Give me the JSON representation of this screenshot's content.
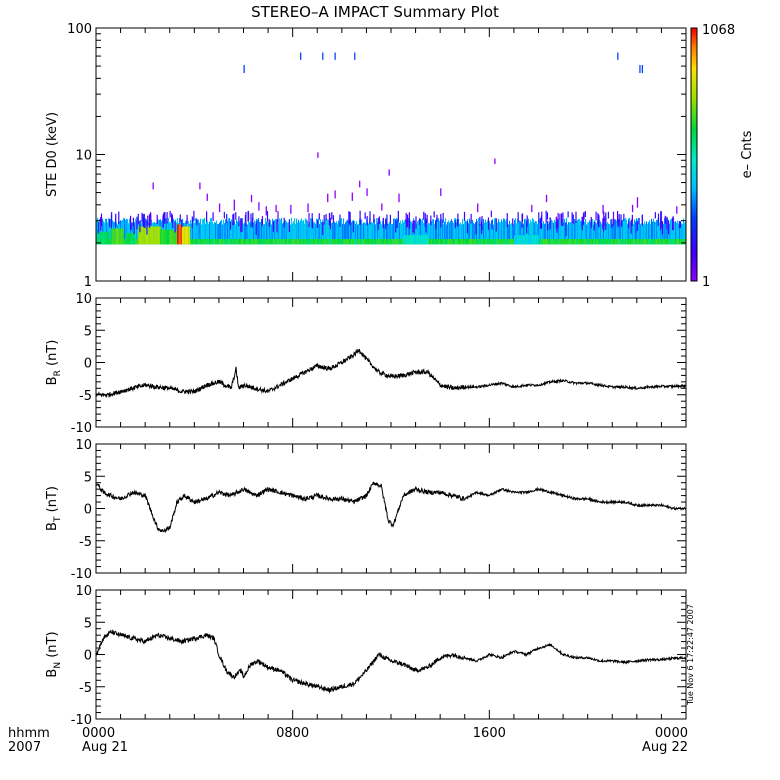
{
  "chart_data": {
    "title": "STEREO–A IMPACT Summary Plot",
    "x_axis": {
      "row_label_1": "hhmm",
      "row_label_2": "2007",
      "ticks": [
        {
          "hour": 0,
          "time": "0000",
          "date": "Aug 21"
        },
        {
          "hour": 8,
          "time": "0800",
          "date": ""
        },
        {
          "hour": 16,
          "time": "1600",
          "date": ""
        },
        {
          "hour": 24,
          "time": "0000",
          "date": "Aug 22"
        }
      ],
      "range_hours": [
        0,
        24
      ]
    },
    "timestamp": "Tue Nov  6 17:22:47 2007",
    "panels": [
      {
        "id": "ste",
        "type": "heatmap",
        "ylabel": "STE D0 (keV)",
        "yscale": "log",
        "ylim": [
          1,
          100
        ],
        "yticks": [
          {
            "value": 1,
            "label": "1"
          },
          {
            "value": 10,
            "label": "10"
          },
          {
            "value": 100,
            "label": "100"
          }
        ],
        "colorbar": {
          "label": "e– Cnts",
          "min_label": "1",
          "max_label": "1068",
          "min": 1,
          "max": 1068
        },
        "background_band": {
          "ylow": 1.95,
          "yhigh": 3.1
        },
        "hot_spots": [
          {
            "x0": 0.05,
            "x1": 0.5,
            "ylow": 1.95,
            "yhigh": 2.45,
            "counts": 70
          },
          {
            "x0": 0.6,
            "x1": 1.1,
            "ylow": 1.95,
            "yhigh": 2.6,
            "counts": 120
          },
          {
            "x0": 1.2,
            "x1": 1.6,
            "ylow": 1.95,
            "yhigh": 2.4,
            "counts": 60
          },
          {
            "x0": 1.7,
            "x1": 2.6,
            "ylow": 1.95,
            "yhigh": 2.7,
            "counts": 200
          },
          {
            "x0": 2.6,
            "x1": 3.1,
            "ylow": 1.95,
            "yhigh": 2.55,
            "counts": 90
          },
          {
            "x0": 3.0,
            "x1": 3.3,
            "ylow": 1.95,
            "yhigh": 2.5,
            "counts": 110
          },
          {
            "x0": 3.3,
            "x1": 3.5,
            "ylow": 1.95,
            "yhigh": 2.8,
            "counts": 1068
          },
          {
            "x0": 3.5,
            "x1": 3.8,
            "ylow": 1.95,
            "yhigh": 2.7,
            "counts": 300
          },
          {
            "x0": 12.5,
            "x1": 13.5,
            "ylow": 1.95,
            "yhigh": 2.3,
            "counts": 30
          },
          {
            "x0": 17.0,
            "x1": 18.0,
            "ylow": 1.95,
            "yhigh": 2.3,
            "counts": 25
          }
        ],
        "spikes": [
          {
            "x": 2.3,
            "ylow": 5.3,
            "yhigh": 6.0,
            "counts": 1
          },
          {
            "x": 4.2,
            "ylow": 5.3,
            "yhigh": 6.0,
            "counts": 1
          },
          {
            "x": 4.5,
            "ylow": 4.3,
            "yhigh": 4.9,
            "counts": 1
          },
          {
            "x": 5.0,
            "ylow": 3.5,
            "yhigh": 4.1,
            "counts": 1
          },
          {
            "x": 5.6,
            "ylow": 3.6,
            "yhigh": 4.4,
            "counts": 1
          },
          {
            "x": 6.3,
            "ylow": 4.2,
            "yhigh": 4.8,
            "counts": 1
          },
          {
            "x": 6.6,
            "ylow": 3.6,
            "yhigh": 4.2,
            "counts": 1
          },
          {
            "x": 6.9,
            "ylow": 3.3,
            "yhigh": 3.9,
            "counts": 1
          },
          {
            "x": 7.3,
            "ylow": 3.5,
            "yhigh": 4.0,
            "counts": 1
          },
          {
            "x": 7.9,
            "ylow": 3.4,
            "yhigh": 4.0,
            "counts": 1
          },
          {
            "x": 8.6,
            "ylow": 3.5,
            "yhigh": 4.1,
            "counts": 1
          },
          {
            "x": 9.0,
            "ylow": 9.4,
            "yhigh": 10.4,
            "counts": 1
          },
          {
            "x": 9.4,
            "ylow": 4.2,
            "yhigh": 4.9,
            "counts": 1
          },
          {
            "x": 9.7,
            "ylow": 4.5,
            "yhigh": 5.2,
            "counts": 1
          },
          {
            "x": 10.4,
            "ylow": 4.3,
            "yhigh": 5.0,
            "counts": 1
          },
          {
            "x": 10.7,
            "ylow": 5.5,
            "yhigh": 6.2,
            "counts": 1
          },
          {
            "x": 11.0,
            "ylow": 4.7,
            "yhigh": 5.4,
            "counts": 1
          },
          {
            "x": 11.6,
            "ylow": 3.6,
            "yhigh": 4.1,
            "counts": 1
          },
          {
            "x": 11.9,
            "ylow": 6.8,
            "yhigh": 7.6,
            "counts": 1
          },
          {
            "x": 12.3,
            "ylow": 4.2,
            "yhigh": 4.9,
            "counts": 1
          },
          {
            "x": 14.0,
            "ylow": 4.7,
            "yhigh": 5.4,
            "counts": 1
          },
          {
            "x": 15.5,
            "ylow": 3.5,
            "yhigh": 4.1,
            "counts": 1
          },
          {
            "x": 16.2,
            "ylow": 8.4,
            "yhigh": 9.3,
            "counts": 1
          },
          {
            "x": 17.7,
            "ylow": 3.5,
            "yhigh": 4.0,
            "counts": 1
          },
          {
            "x": 18.3,
            "ylow": 4.2,
            "yhigh": 4.8,
            "counts": 1
          },
          {
            "x": 20.6,
            "ylow": 3.4,
            "yhigh": 4.0,
            "counts": 1
          },
          {
            "x": 21.8,
            "ylow": 3.5,
            "yhigh": 4.0,
            "counts": 1
          },
          {
            "x": 22.0,
            "ylow": 3.8,
            "yhigh": 4.6,
            "counts": 1
          },
          {
            "x": 23.6,
            "ylow": 3.4,
            "yhigh": 3.9,
            "counts": 1
          }
        ],
        "high_energy_marks": [
          {
            "x": 6.0,
            "ylow": 44,
            "yhigh": 51,
            "counts": 6
          },
          {
            "x": 8.3,
            "ylow": 56,
            "yhigh": 64,
            "counts": 6
          },
          {
            "x": 9.2,
            "ylow": 56,
            "yhigh": 64,
            "counts": 6
          },
          {
            "x": 9.7,
            "ylow": 56,
            "yhigh": 64,
            "counts": 6
          },
          {
            "x": 10.5,
            "ylow": 56,
            "yhigh": 64,
            "counts": 6
          },
          {
            "x": 21.2,
            "ylow": 56,
            "yhigh": 64,
            "counts": 6
          },
          {
            "x": 22.1,
            "ylow": 44,
            "yhigh": 51,
            "counts": 6
          },
          {
            "x": 22.2,
            "ylow": 44,
            "yhigh": 51,
            "counts": 6
          }
        ]
      },
      {
        "id": "br",
        "type": "line",
        "ylabel_main": "B",
        "ylabel_sub": "R",
        "ylabel_unit": " (nT)",
        "ylim": [
          -10,
          10
        ],
        "yticks": [
          -10,
          -5,
          0,
          5,
          10
        ],
        "x": [
          0,
          0.5,
          1,
          1.5,
          2,
          2.5,
          3,
          3.5,
          4,
          4.5,
          5,
          5.5,
          5.7,
          5.8,
          6,
          6.5,
          7,
          7.5,
          8,
          8.5,
          9,
          9.5,
          10,
          10.5,
          10.7,
          11,
          11.5,
          12,
          12.5,
          13,
          13.5,
          14,
          14.5,
          15,
          15.5,
          16,
          16.5,
          17,
          17.5,
          18,
          18.5,
          19,
          19.5,
          20,
          20.5,
          21,
          21.5,
          22,
          22.5,
          23,
          23.5,
          24
        ],
        "values": [
          -5,
          -5,
          -4.5,
          -4,
          -3.5,
          -3.8,
          -4,
          -4.5,
          -4.5,
          -3.5,
          -3,
          -4,
          -1,
          -4,
          -3.5,
          -4,
          -4.5,
          -3.5,
          -2.5,
          -1.5,
          -0.5,
          -1,
          0,
          1.2,
          2,
          0.5,
          -1.5,
          -2.2,
          -2,
          -1.5,
          -1.5,
          -3.5,
          -4,
          -3.8,
          -3.8,
          -3.5,
          -3.2,
          -3.8,
          -3.5,
          -3.5,
          -3,
          -2.8,
          -3.2,
          -3.2,
          -3.5,
          -3.8,
          -3.8,
          -4,
          -3.8,
          -3.7,
          -3.7,
          -3.6
        ]
      },
      {
        "id": "bt",
        "type": "line",
        "ylabel_main": "B",
        "ylabel_sub": "T",
        "ylabel_unit": " (nT)",
        "ylim": [
          -10,
          10
        ],
        "yticks": [
          -10,
          -5,
          0,
          5,
          10
        ],
        "x": [
          0,
          0.3,
          0.6,
          1,
          1.5,
          2,
          2.3,
          2.5,
          2.7,
          3,
          3.3,
          3.6,
          4,
          4.5,
          5,
          5.5,
          6,
          6.5,
          7,
          7.5,
          8,
          8.5,
          9,
          9.5,
          10,
          10.5,
          11,
          11.3,
          11.6,
          11.9,
          12.1,
          12.5,
          13,
          13.5,
          14,
          14.5,
          15,
          15.5,
          16,
          16.5,
          17,
          17.5,
          18,
          18.5,
          19,
          19.5,
          20,
          20.5,
          21,
          21.5,
          22,
          22.5,
          23,
          23.5,
          24
        ],
        "values": [
          4,
          2.5,
          2,
          1.5,
          2.5,
          2,
          -1,
          -3,
          -3.5,
          -3,
          1,
          2,
          1,
          1.5,
          2.5,
          2,
          3,
          2,
          3,
          2.5,
          2,
          1.5,
          2,
          1.5,
          1.5,
          1,
          2,
          4,
          3.5,
          -2,
          -2.5,
          2,
          3,
          2.5,
          2.5,
          2,
          1.5,
          2.5,
          2,
          3,
          2.5,
          2.5,
          3,
          2.5,
          2,
          1.5,
          1.5,
          1,
          1,
          1,
          0.5,
          0.5,
          0.5,
          0,
          0
        ]
      },
      {
        "id": "bn",
        "type": "line",
        "ylabel_main": "B",
        "ylabel_sub": "N",
        "ylabel_unit": " (nT)",
        "ylim": [
          -10,
          10
        ],
        "yticks": [
          -10,
          -5,
          0,
          5,
          10
        ],
        "x": [
          0,
          0.3,
          0.6,
          1,
          1.5,
          2,
          2.5,
          3,
          3.5,
          4,
          4.5,
          4.8,
          5,
          5.3,
          5.6,
          5.9,
          6,
          6.3,
          6.6,
          7,
          7.5,
          8,
          8.5,
          9,
          9.5,
          10,
          10.5,
          11,
          11.5,
          12,
          12.5,
          13,
          13.5,
          14,
          14.5,
          15,
          15.5,
          16,
          16.5,
          17,
          17.5,
          18,
          18.5,
          19,
          19.5,
          20,
          20.5,
          21,
          21.5,
          22,
          22.5,
          23,
          23.5,
          24
        ],
        "values": [
          0,
          2.5,
          3.5,
          3,
          2.5,
          2,
          3,
          2.5,
          2,
          2.5,
          3,
          2.5,
          0,
          -2.5,
          -3.5,
          -2.5,
          -3.5,
          -1.5,
          -1,
          -2,
          -2.5,
          -4,
          -4.5,
          -5,
          -5.5,
          -5,
          -4.5,
          -2.5,
          0,
          -1,
          -1.5,
          -2.5,
          -2,
          -0.5,
          0,
          -0.5,
          -1,
          0,
          -0.5,
          0.5,
          0,
          1,
          1.5,
          0,
          -0.5,
          -0.5,
          -1,
          -1,
          -1.2,
          -1,
          -0.8,
          -0.8,
          -0.6,
          -0.5
        ]
      }
    ]
  }
}
